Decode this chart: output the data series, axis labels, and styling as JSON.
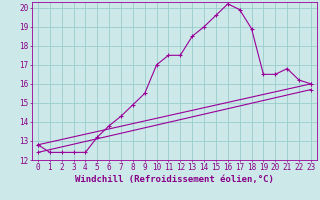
{
  "xlabel": "Windchill (Refroidissement éolien,°C)",
  "background_color": "#cce8e8",
  "grid_color": "#99cccc",
  "line_color": "#990099",
  "xlim": [
    -0.5,
    23.5
  ],
  "ylim": [
    12,
    20.3
  ],
  "yticks": [
    12,
    13,
    14,
    15,
    16,
    17,
    18,
    19,
    20
  ],
  "xticks": [
    0,
    1,
    2,
    3,
    4,
    5,
    6,
    7,
    8,
    9,
    10,
    11,
    12,
    13,
    14,
    15,
    16,
    17,
    18,
    19,
    20,
    21,
    22,
    23
  ],
  "line1_x": [
    0,
    1,
    2,
    3,
    4,
    5,
    6,
    7,
    8,
    9,
    10,
    11,
    12,
    13,
    14,
    15,
    16,
    17,
    18,
    19,
    20,
    21,
    22,
    23
  ],
  "line1_y": [
    12.8,
    12.4,
    12.4,
    12.4,
    12.4,
    13.2,
    13.8,
    14.3,
    14.9,
    15.5,
    17.0,
    17.5,
    17.5,
    18.5,
    19.0,
    19.6,
    20.2,
    19.9,
    18.9,
    16.5,
    16.5,
    16.8,
    16.2,
    16.0
  ],
  "line2_x": [
    0,
    23
  ],
  "line2_y": [
    12.8,
    16.0
  ],
  "line3_x": [
    0,
    23
  ],
  "line3_y": [
    12.4,
    15.7
  ],
  "font_color": "#880088",
  "tick_labelsize": 5.5,
  "xlabel_fontsize": 6.5
}
